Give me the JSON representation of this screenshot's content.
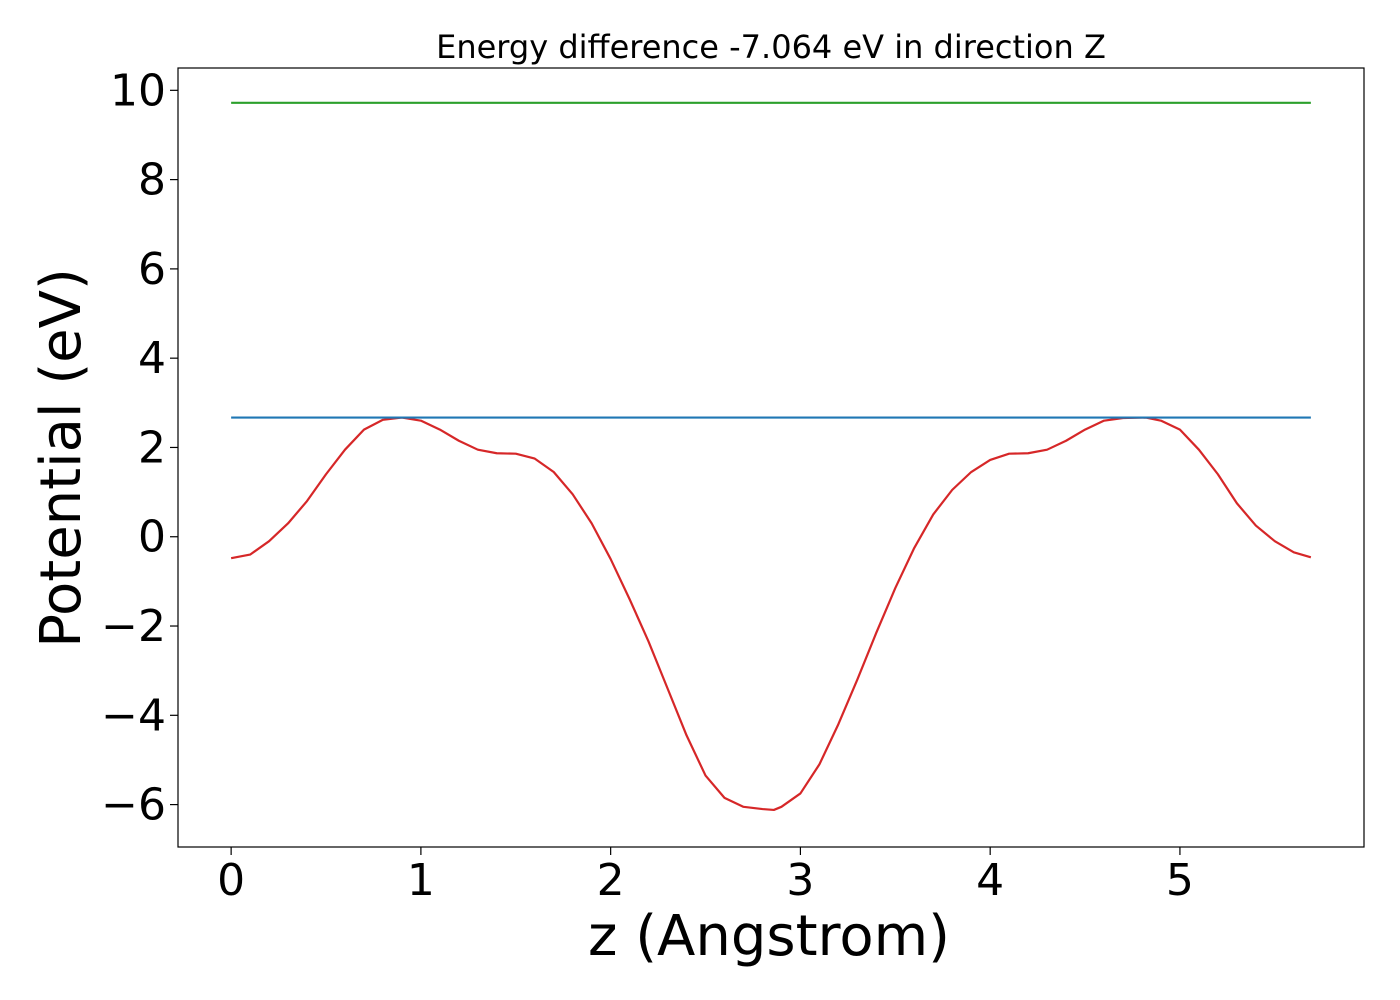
{
  "chart_data": {
    "type": "line",
    "title": "Energy difference -7.064 eV in direction Z",
    "xlabel": "z (Angstrom)",
    "ylabel": "Potential (eV)",
    "xlim": [
      -0.28,
      5.97
    ],
    "ylim": [
      -6.95,
      10.5
    ],
    "xticks": [
      0,
      1,
      2,
      3,
      4,
      5
    ],
    "yticks": [
      10,
      8,
      6,
      4,
      2,
      0,
      -2,
      -4,
      -6
    ],
    "xtick_labels": [
      "0",
      "1",
      "2",
      "3",
      "4",
      "5"
    ],
    "ytick_labels": [
      "10",
      "8",
      "6",
      "4",
      "2",
      "0",
      "−2",
      "−4",
      "−6"
    ],
    "grid": false,
    "series": [
      {
        "color": "#d62728",
        "x": [
          0.0,
          0.1,
          0.2,
          0.3,
          0.4,
          0.5,
          0.6,
          0.7,
          0.8,
          0.9,
          1.0,
          1.1,
          1.2,
          1.3,
          1.4,
          1.5,
          1.6,
          1.7,
          1.8,
          1.9,
          2.0,
          2.1,
          2.2,
          2.3,
          2.4,
          2.5,
          2.6,
          2.7,
          2.8,
          2.86,
          2.9,
          3.0,
          3.1,
          3.2,
          3.3,
          3.4,
          3.5,
          3.6,
          3.7,
          3.8,
          3.9,
          4.0,
          4.1,
          4.2,
          4.3,
          4.4,
          4.5,
          4.6,
          4.7,
          4.82,
          4.9,
          5.0,
          5.1,
          5.2,
          5.3,
          5.4,
          5.5,
          5.6,
          5.69
        ],
        "y": [
          -0.48,
          -0.4,
          -0.1,
          0.3,
          0.8,
          1.4,
          1.95,
          2.4,
          2.62,
          2.67,
          2.6,
          2.4,
          2.15,
          1.95,
          1.87,
          1.86,
          1.75,
          1.45,
          0.95,
          0.3,
          -0.5,
          -1.4,
          -2.35,
          -3.4,
          -4.45,
          -5.35,
          -5.85,
          -6.05,
          -6.1,
          -6.12,
          -6.05,
          -5.75,
          -5.1,
          -4.2,
          -3.2,
          -2.15,
          -1.15,
          -0.25,
          0.5,
          1.05,
          1.45,
          1.72,
          1.86,
          1.87,
          1.95,
          2.15,
          2.4,
          2.6,
          2.66,
          2.67,
          2.6,
          2.4,
          1.95,
          1.4,
          0.75,
          0.25,
          -0.1,
          -0.35,
          -0.46
        ]
      },
      {
        "color": "#1f77b4",
        "x": [
          0.0,
          5.69
        ],
        "y": [
          2.67,
          2.67
        ]
      },
      {
        "color": "#2ca02c",
        "x": [
          0.0,
          5.69
        ],
        "y": [
          9.72,
          9.72
        ]
      }
    ]
  }
}
